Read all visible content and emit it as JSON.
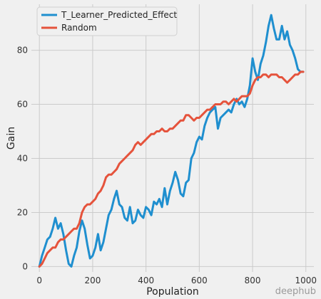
{
  "chart_data": {
    "type": "line",
    "title": "",
    "xlabel": "Population",
    "ylabel": "Gain",
    "xlim": [
      -30,
      1030
    ],
    "ylim": [
      -2,
      97
    ],
    "xticks": [
      0,
      200,
      400,
      600,
      800,
      1000
    ],
    "yticks": [
      0,
      20,
      40,
      60,
      80
    ],
    "grid": true,
    "legend_position": "top-left",
    "series": [
      {
        "name": "T_Learner_Predicted_Effect",
        "color": "#1f8fcf",
        "x": [
          0,
          10,
          20,
          30,
          40,
          50,
          60,
          70,
          80,
          90,
          100,
          110,
          120,
          130,
          140,
          150,
          160,
          170,
          180,
          190,
          200,
          210,
          220,
          230,
          240,
          250,
          260,
          270,
          280,
          290,
          300,
          310,
          320,
          330,
          340,
          350,
          360,
          370,
          380,
          390,
          400,
          410,
          420,
          430,
          440,
          450,
          460,
          470,
          480,
          490,
          500,
          510,
          520,
          530,
          540,
          550,
          560,
          570,
          580,
          590,
          600,
          610,
          620,
          630,
          640,
          650,
          660,
          670,
          680,
          690,
          700,
          710,
          720,
          730,
          740,
          750,
          760,
          770,
          780,
          790,
          800,
          810,
          820,
          830,
          840,
          850,
          860,
          870,
          880,
          890,
          900,
          910,
          920,
          930,
          940,
          950,
          960,
          970,
          980,
          990
        ],
        "values": [
          0,
          4,
          7,
          10,
          11,
          14,
          18,
          14,
          16,
          12,
          6,
          1,
          0,
          4,
          7,
          13,
          17,
          14,
          8,
          3,
          4,
          7,
          12,
          6,
          9,
          14,
          19,
          21,
          25,
          28,
          23,
          22,
          18,
          17,
          22,
          16,
          17,
          21,
          19,
          18,
          22,
          21,
          19,
          24,
          23,
          25,
          22,
          29,
          23,
          28,
          31,
          35,
          32,
          27,
          26,
          31,
          32,
          40,
          42,
          46,
          48,
          47,
          52,
          55,
          57,
          58,
          59,
          51,
          55,
          56,
          57,
          58,
          57,
          60,
          62,
          60,
          61,
          59,
          62,
          67,
          77,
          72,
          69,
          75,
          78,
          83,
          89,
          93,
          88,
          84,
          84,
          89,
          84,
          87,
          82,
          80,
          77,
          73,
          72,
          72
        ]
      },
      {
        "name": "Random",
        "color": "#e5533c",
        "x": [
          0,
          10,
          20,
          30,
          40,
          50,
          60,
          70,
          80,
          90,
          100,
          110,
          120,
          130,
          140,
          150,
          160,
          170,
          180,
          190,
          200,
          210,
          220,
          230,
          240,
          250,
          260,
          270,
          280,
          290,
          300,
          310,
          320,
          330,
          340,
          350,
          360,
          370,
          380,
          390,
          400,
          410,
          420,
          430,
          440,
          450,
          460,
          470,
          480,
          490,
          500,
          510,
          520,
          530,
          540,
          550,
          560,
          570,
          580,
          590,
          600,
          610,
          620,
          630,
          640,
          650,
          660,
          670,
          680,
          690,
          700,
          710,
          720,
          730,
          740,
          750,
          760,
          770,
          780,
          790,
          800,
          810,
          820,
          830,
          840,
          850,
          860,
          870,
          880,
          890,
          900,
          910,
          920,
          930,
          940,
          950,
          960,
          970,
          980,
          990
        ],
        "values": [
          0,
          1,
          3,
          5,
          6,
          7,
          7,
          9,
          10,
          10,
          11,
          12,
          13,
          14,
          14,
          16,
          20,
          22,
          23,
          23,
          24,
          25,
          27,
          28,
          30,
          33,
          34,
          34,
          35,
          36,
          38,
          39,
          40,
          41,
          42,
          43,
          45,
          46,
          45,
          46,
          47,
          48,
          49,
          49,
          50,
          50,
          51,
          50,
          50,
          51,
          51,
          52,
          53,
          54,
          54,
          56,
          56,
          55,
          54,
          55,
          55,
          56,
          57,
          58,
          58,
          59,
          60,
          60,
          60,
          61,
          61,
          60,
          61,
          62,
          61,
          62,
          63,
          63,
          63,
          64,
          67,
          69,
          70,
          70,
          71,
          71,
          70,
          71,
          71,
          71,
          70,
          70,
          69,
          68,
          69,
          70,
          71,
          71,
          72,
          72
        ]
      }
    ]
  },
  "watermark": "deephub"
}
